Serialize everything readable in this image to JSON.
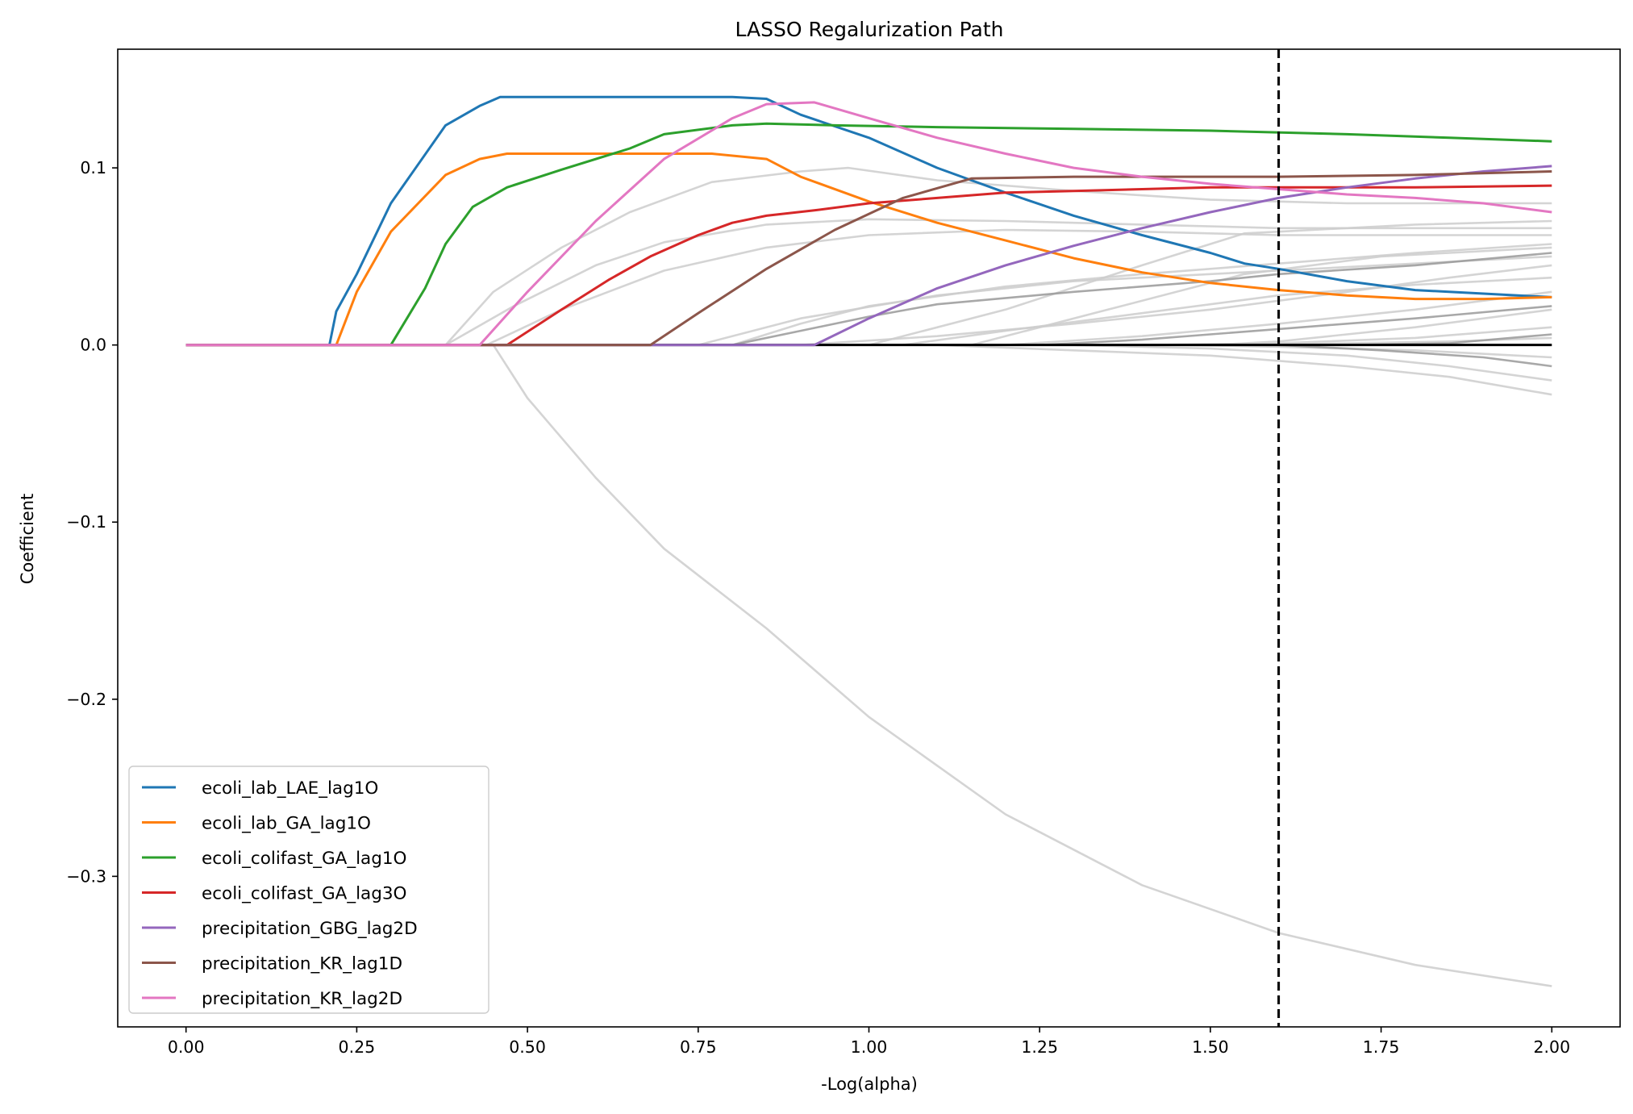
{
  "chart_data": {
    "type": "line",
    "title": "LASSO Regalurization Path",
    "xlabel": "-Log(alpha)",
    "ylabel": "Coefficient",
    "xlim": [
      -0.1,
      2.1
    ],
    "ylim": [
      -0.385,
      0.167
    ],
    "grid": false,
    "legend_position": "lower-left",
    "x_ticks": [
      {
        "value": 0.0,
        "label": "0.00"
      },
      {
        "value": 0.25,
        "label": "0.25"
      },
      {
        "value": 0.5,
        "label": "0.50"
      },
      {
        "value": 0.75,
        "label": "0.75"
      },
      {
        "value": 1.0,
        "label": "1.00"
      },
      {
        "value": 1.25,
        "label": "1.25"
      },
      {
        "value": 1.5,
        "label": "1.50"
      },
      {
        "value": 1.75,
        "label": "1.75"
      },
      {
        "value": 2.0,
        "label": "2.00"
      }
    ],
    "y_ticks": [
      {
        "value": 0.1,
        "label": "0.1"
      },
      {
        "value": 0.0,
        "label": "0.0"
      },
      {
        "value": -0.1,
        "label": "−0.1"
      },
      {
        "value": -0.2,
        "label": "−0.2"
      },
      {
        "value": -0.3,
        "label": "−0.3"
      }
    ],
    "selected_alpha_line": {
      "x": 1.6,
      "style": "dashed",
      "color": "#000000"
    },
    "zero_line": {
      "y": 0.0,
      "x_range": [
        0.0,
        2.0
      ],
      "color": "#000000"
    },
    "series": [
      {
        "name": "ecoli_lab_LAE_lag1O",
        "color": "#1f77b4",
        "points": [
          [
            0.21,
            0
          ],
          [
            0.22,
            0.019
          ],
          [
            0.25,
            0.04
          ],
          [
            0.3,
            0.08
          ],
          [
            0.38,
            0.124
          ],
          [
            0.43,
            0.135
          ],
          [
            0.46,
            0.14
          ],
          [
            0.6,
            0.14
          ],
          [
            0.75,
            0.14
          ],
          [
            0.8,
            0.14
          ],
          [
            0.85,
            0.139
          ],
          [
            0.9,
            0.13
          ],
          [
            1.0,
            0.117
          ],
          [
            1.1,
            0.1
          ],
          [
            1.2,
            0.086
          ],
          [
            1.3,
            0.073
          ],
          [
            1.4,
            0.062
          ],
          [
            1.5,
            0.052
          ],
          [
            1.55,
            0.046
          ],
          [
            1.6,
            0.043
          ],
          [
            1.7,
            0.036
          ],
          [
            1.8,
            0.031
          ],
          [
            1.9,
            0.029
          ],
          [
            2.0,
            0.027
          ]
        ]
      },
      {
        "name": "ecoli_lab_GA_lag1O",
        "color": "#ff7f0e",
        "points": [
          [
            0.22,
            0
          ],
          [
            0.25,
            0.03
          ],
          [
            0.3,
            0.064
          ],
          [
            0.38,
            0.096
          ],
          [
            0.43,
            0.105
          ],
          [
            0.47,
            0.108
          ],
          [
            0.6,
            0.108
          ],
          [
            0.7,
            0.108
          ],
          [
            0.77,
            0.108
          ],
          [
            0.85,
            0.105
          ],
          [
            0.9,
            0.095
          ],
          [
            1.0,
            0.081
          ],
          [
            1.1,
            0.069
          ],
          [
            1.2,
            0.059
          ],
          [
            1.3,
            0.049
          ],
          [
            1.4,
            0.041
          ],
          [
            1.5,
            0.035
          ],
          [
            1.6,
            0.031
          ],
          [
            1.7,
            0.028
          ],
          [
            1.8,
            0.026
          ],
          [
            1.9,
            0.026
          ],
          [
            2.0,
            0.027
          ]
        ]
      },
      {
        "name": "ecoli_colifast_GA_lag1O",
        "color": "#2ca02c",
        "points": [
          [
            0.3,
            0
          ],
          [
            0.35,
            0.032
          ],
          [
            0.38,
            0.057
          ],
          [
            0.42,
            0.078
          ],
          [
            0.47,
            0.089
          ],
          [
            0.55,
            0.099
          ],
          [
            0.65,
            0.111
          ],
          [
            0.7,
            0.119
          ],
          [
            0.8,
            0.124
          ],
          [
            0.85,
            0.125
          ],
          [
            0.95,
            0.124
          ],
          [
            1.1,
            0.123
          ],
          [
            1.3,
            0.122
          ],
          [
            1.5,
            0.121
          ],
          [
            1.7,
            0.119
          ],
          [
            1.85,
            0.117
          ],
          [
            2.0,
            0.115
          ]
        ]
      },
      {
        "name": "ecoli_colifast_GA_lag3O",
        "color": "#d62728",
        "points": [
          [
            0.47,
            0
          ],
          [
            0.55,
            0.02
          ],
          [
            0.62,
            0.037
          ],
          [
            0.68,
            0.05
          ],
          [
            0.75,
            0.062
          ],
          [
            0.8,
            0.069
          ],
          [
            0.85,
            0.073
          ],
          [
            0.92,
            0.076
          ],
          [
            1.0,
            0.08
          ],
          [
            1.1,
            0.083
          ],
          [
            1.2,
            0.086
          ],
          [
            1.3,
            0.087
          ],
          [
            1.4,
            0.088
          ],
          [
            1.5,
            0.089
          ],
          [
            1.6,
            0.089
          ],
          [
            1.8,
            0.089
          ],
          [
            2.0,
            0.09
          ]
        ]
      },
      {
        "name": "precipitation_GBG_lag2D",
        "color": "#9467bd",
        "points": [
          [
            0.92,
            0
          ],
          [
            1.0,
            0.015
          ],
          [
            1.1,
            0.032
          ],
          [
            1.2,
            0.045
          ],
          [
            1.3,
            0.056
          ],
          [
            1.4,
            0.066
          ],
          [
            1.5,
            0.075
          ],
          [
            1.6,
            0.083
          ],
          [
            1.7,
            0.089
          ],
          [
            1.8,
            0.094
          ],
          [
            1.9,
            0.098
          ],
          [
            2.0,
            0.101
          ]
        ]
      },
      {
        "name": "precipitation_KR_lag1D",
        "color": "#8c564b",
        "points": [
          [
            0.68,
            0
          ],
          [
            0.75,
            0.018
          ],
          [
            0.85,
            0.043
          ],
          [
            0.95,
            0.065
          ],
          [
            1.05,
            0.083
          ],
          [
            1.15,
            0.094
          ],
          [
            1.3,
            0.095
          ],
          [
            1.5,
            0.095
          ],
          [
            1.6,
            0.095
          ],
          [
            1.8,
            0.096
          ],
          [
            2.0,
            0.098
          ]
        ]
      },
      {
        "name": "precipitation_KR_lag2D",
        "color": "#e377c2",
        "points": [
          [
            0.43,
            0
          ],
          [
            0.5,
            0.03
          ],
          [
            0.6,
            0.07
          ],
          [
            0.7,
            0.105
          ],
          [
            0.8,
            0.128
          ],
          [
            0.85,
            0.136
          ],
          [
            0.92,
            0.137
          ],
          [
            1.0,
            0.128
          ],
          [
            1.1,
            0.117
          ],
          [
            1.2,
            0.108
          ],
          [
            1.3,
            0.1
          ],
          [
            1.4,
            0.095
          ],
          [
            1.5,
            0.091
          ],
          [
            1.6,
            0.088
          ],
          [
            1.7,
            0.085
          ],
          [
            1.8,
            0.083
          ],
          [
            1.9,
            0.08
          ],
          [
            2.0,
            0.075
          ]
        ]
      }
    ],
    "background_series": [
      {
        "color": "#cccccc",
        "points": [
          [
            0.45,
            0
          ],
          [
            0.5,
            -0.03
          ],
          [
            0.6,
            -0.075
          ],
          [
            0.7,
            -0.115
          ],
          [
            0.85,
            -0.16
          ],
          [
            1.0,
            -0.21
          ],
          [
            1.2,
            -0.265
          ],
          [
            1.4,
            -0.305
          ],
          [
            1.6,
            -0.332
          ],
          [
            1.8,
            -0.35
          ],
          [
            2.0,
            -0.362
          ]
        ]
      },
      {
        "color": "#cccccc",
        "points": [
          [
            0.38,
            0
          ],
          [
            0.45,
            0.03
          ],
          [
            0.55,
            0.055
          ],
          [
            0.65,
            0.075
          ],
          [
            0.77,
            0.092
          ],
          [
            0.9,
            0.098
          ],
          [
            0.97,
            0.1
          ],
          [
            1.1,
            0.093
          ],
          [
            1.3,
            0.087
          ],
          [
            1.5,
            0.082
          ],
          [
            1.7,
            0.08
          ],
          [
            1.85,
            0.08
          ],
          [
            2.0,
            0.08
          ]
        ]
      },
      {
        "color": "#cccccc",
        "points": [
          [
            0.38,
            0
          ],
          [
            0.48,
            0.022
          ],
          [
            0.6,
            0.045
          ],
          [
            0.7,
            0.058
          ],
          [
            0.85,
            0.068
          ],
          [
            1.0,
            0.071
          ],
          [
            1.2,
            0.07
          ],
          [
            1.4,
            0.068
          ],
          [
            1.6,
            0.066
          ],
          [
            1.8,
            0.066
          ],
          [
            2.0,
            0.066
          ]
        ]
      },
      {
        "color": "#cccccc",
        "points": [
          [
            0.44,
            0
          ],
          [
            0.55,
            0.02
          ],
          [
            0.7,
            0.042
          ],
          [
            0.85,
            0.055
          ],
          [
            1.0,
            0.062
          ],
          [
            1.2,
            0.065
          ],
          [
            1.4,
            0.064
          ],
          [
            1.6,
            0.062
          ],
          [
            1.8,
            0.062
          ],
          [
            2.0,
            0.062
          ]
        ]
      },
      {
        "color": "#cccccc",
        "points": [
          [
            0.8,
            0
          ],
          [
            0.9,
            0.012
          ],
          [
            1.0,
            0.022
          ],
          [
            1.2,
            0.033
          ],
          [
            1.4,
            0.04
          ],
          [
            1.6,
            0.046
          ],
          [
            1.8,
            0.052
          ],
          [
            2.0,
            0.057
          ]
        ]
      },
      {
        "color": "#cccccc",
        "points": [
          [
            0.75,
            0
          ],
          [
            0.9,
            0.015
          ],
          [
            1.1,
            0.028
          ],
          [
            1.3,
            0.036
          ],
          [
            1.5,
            0.04
          ],
          [
            1.7,
            0.044
          ],
          [
            2.0,
            0.05
          ]
        ]
      },
      {
        "color": "#cccccc",
        "points": [
          [
            0.9,
            0
          ],
          [
            1.1,
            0.005
          ],
          [
            1.3,
            0.012
          ],
          [
            1.5,
            0.02
          ],
          [
            1.7,
            0.03
          ],
          [
            1.85,
            0.038
          ],
          [
            2.0,
            0.045
          ]
        ]
      },
      {
        "color": "#cccccc",
        "points": [
          [
            1.05,
            0
          ],
          [
            1.2,
            0.008
          ],
          [
            1.4,
            0.018
          ],
          [
            1.6,
            0.028
          ],
          [
            1.8,
            0.034
          ],
          [
            2.0,
            0.038
          ]
        ]
      },
      {
        "color": "#cccccc",
        "points": [
          [
            1.2,
            0
          ],
          [
            1.4,
            0.005
          ],
          [
            1.6,
            0.012
          ],
          [
            1.8,
            0.02
          ],
          [
            2.0,
            0.03
          ]
        ]
      },
      {
        "color": "#cccccc",
        "points": [
          [
            1.1,
            0
          ],
          [
            1.3,
            -0.003
          ],
          [
            1.5,
            -0.006
          ],
          [
            1.7,
            -0.012
          ],
          [
            1.85,
            -0.018
          ],
          [
            2.0,
            -0.028
          ]
        ]
      },
      {
        "color": "#cccccc",
        "points": [
          [
            1.3,
            0
          ],
          [
            1.5,
            -0.002
          ],
          [
            1.7,
            -0.006
          ],
          [
            1.85,
            -0.012
          ],
          [
            2.0,
            -0.02
          ]
        ]
      },
      {
        "color": "#cccccc",
        "points": [
          [
            1.4,
            0
          ],
          [
            1.6,
            0.001
          ],
          [
            1.8,
            0.004
          ],
          [
            2.0,
            0.01
          ]
        ]
      },
      {
        "color": "#cccccc",
        "points": [
          [
            1.45,
            0
          ],
          [
            1.6,
            -0.001
          ],
          [
            1.8,
            -0.003
          ],
          [
            2.0,
            -0.007
          ]
        ]
      },
      {
        "color": "#cccccc",
        "points": [
          [
            1.0,
            0
          ],
          [
            1.2,
            0.02
          ],
          [
            1.4,
            0.045
          ],
          [
            1.55,
            0.063
          ],
          [
            1.6,
            0.064
          ],
          [
            1.8,
            0.068
          ],
          [
            2.0,
            0.07
          ]
        ]
      },
      {
        "color": "#cccccc",
        "points": [
          [
            1.15,
            0
          ],
          [
            1.35,
            0.02
          ],
          [
            1.55,
            0.04
          ],
          [
            1.75,
            0.05
          ],
          [
            2.0,
            0.055
          ]
        ]
      },
      {
        "color": "#cccccc",
        "points": [
          [
            1.5,
            0
          ],
          [
            1.6,
            0.002
          ],
          [
            1.8,
            0.01
          ],
          [
            2.0,
            0.02
          ]
        ]
      },
      {
        "color": "#cccccc",
        "points": [
          [
            1.55,
            0
          ],
          [
            1.7,
            0.001
          ],
          [
            1.85,
            0.002
          ],
          [
            2.0,
            0.004
          ]
        ]
      },
      {
        "color": "#999999",
        "points": [
          [
            0.8,
            0
          ],
          [
            0.9,
            0.008
          ],
          [
            1.0,
            0.016
          ],
          [
            1.1,
            0.023
          ],
          [
            1.3,
            0.03
          ],
          [
            1.5,
            0.036
          ],
          [
            1.6,
            0.04
          ],
          [
            1.8,
            0.045
          ],
          [
            2.0,
            0.052
          ]
        ]
      },
      {
        "color": "#999999",
        "points": [
          [
            1.25,
            0
          ],
          [
            1.4,
            0.003
          ],
          [
            1.6,
            0.009
          ],
          [
            1.8,
            0.015
          ],
          [
            2.0,
            0.022
          ]
        ]
      },
      {
        "color": "#999999",
        "points": [
          [
            1.6,
            0
          ],
          [
            1.75,
            -0.003
          ],
          [
            1.9,
            -0.007
          ],
          [
            2.0,
            -0.012
          ]
        ]
      },
      {
        "color": "#999999",
        "points": [
          [
            1.7,
            0
          ],
          [
            1.85,
            0.001
          ],
          [
            2.0,
            0.006
          ]
        ]
      }
    ],
    "legend": [
      {
        "label": "ecoli_lab_LAE_lag1O",
        "color": "#1f77b4"
      },
      {
        "label": "ecoli_lab_GA_lag1O",
        "color": "#ff7f0e"
      },
      {
        "label": "ecoli_colifast_GA_lag1O",
        "color": "#2ca02c"
      },
      {
        "label": "ecoli_colifast_GA_lag3O",
        "color": "#d62728"
      },
      {
        "label": "precipitation_GBG_lag2D",
        "color": "#9467bd"
      },
      {
        "label": "precipitation_KR_lag1D",
        "color": "#8c564b"
      },
      {
        "label": "precipitation_KR_lag2D",
        "color": "#e377c2"
      }
    ]
  }
}
